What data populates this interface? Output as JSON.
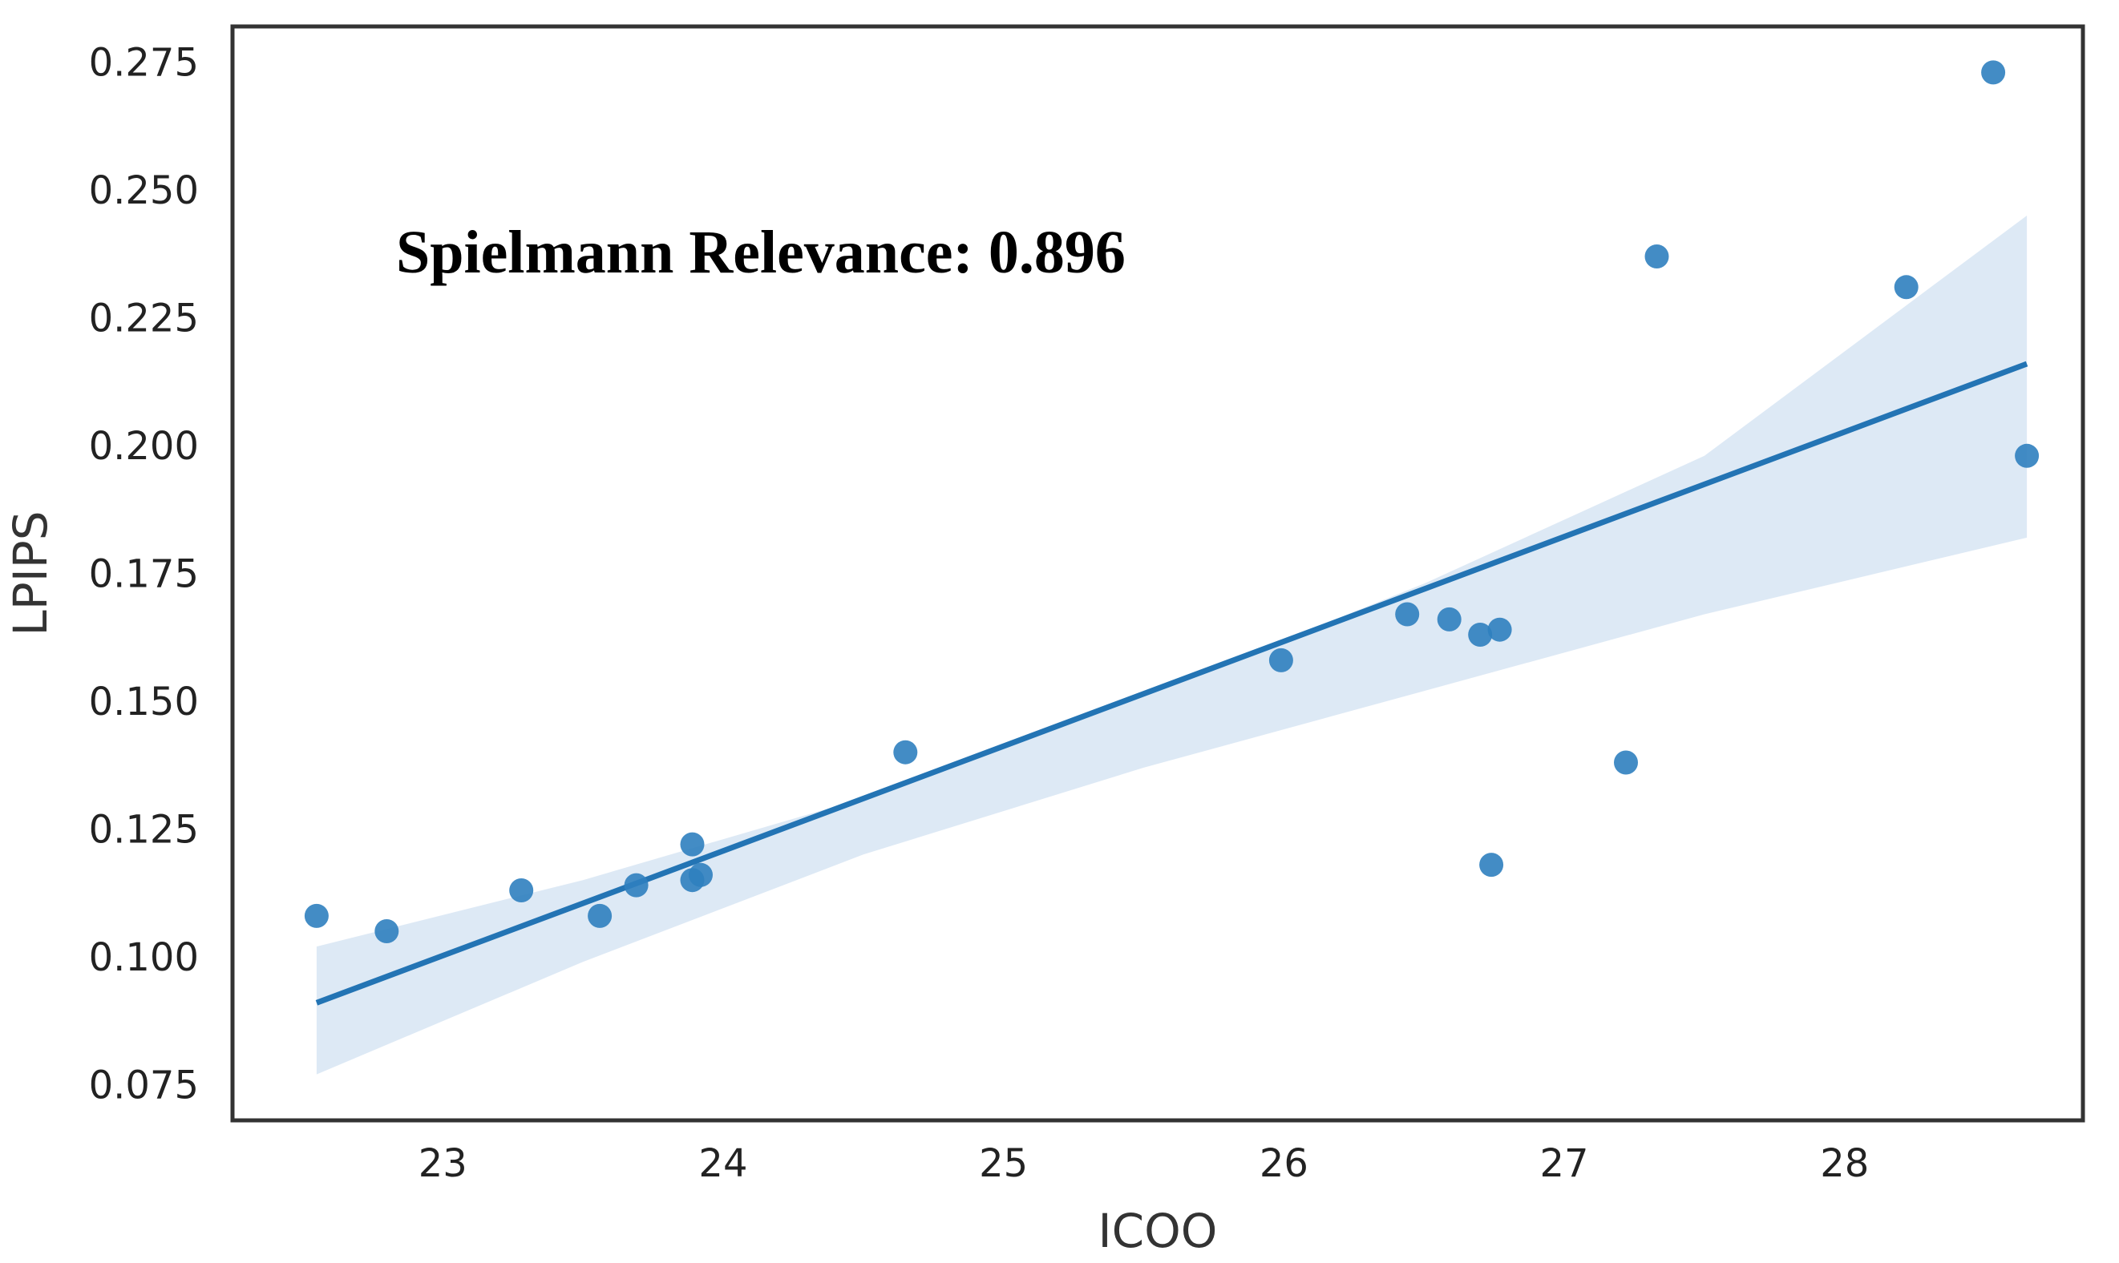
{
  "chart_data": {
    "type": "scatter",
    "xlabel": "ICOO",
    "ylabel": "LPIPS",
    "annotation": "Spielmann Relevance: 0.896",
    "xlim": [
      22.25,
      28.85
    ],
    "ylim": [
      0.068,
      0.282
    ],
    "xticks": [
      23,
      24,
      25,
      26,
      27,
      28
    ],
    "yticks": [
      0.075,
      0.1,
      0.125,
      0.15,
      0.175,
      0.2,
      0.225,
      0.25,
      0.275
    ],
    "xtick_labels": [
      "23",
      "24",
      "25",
      "26",
      "27",
      "28"
    ],
    "ytick_labels": [
      "0.075",
      "0.100",
      "0.125",
      "0.150",
      "0.175",
      "0.200",
      "0.225",
      "0.250",
      "0.275"
    ],
    "grid": false,
    "series": [
      {
        "points": [
          {
            "x": 22.55,
            "y": 0.108
          },
          {
            "x": 22.8,
            "y": 0.105
          },
          {
            "x": 23.28,
            "y": 0.113
          },
          {
            "x": 23.56,
            "y": 0.108
          },
          {
            "x": 23.69,
            "y": 0.114
          },
          {
            "x": 23.89,
            "y": 0.122
          },
          {
            "x": 23.89,
            "y": 0.115
          },
          {
            "x": 23.92,
            "y": 0.116
          },
          {
            "x": 24.65,
            "y": 0.14
          },
          {
            "x": 25.99,
            "y": 0.158
          },
          {
            "x": 26.44,
            "y": 0.167
          },
          {
            "x": 26.59,
            "y": 0.166
          },
          {
            "x": 26.7,
            "y": 0.163
          },
          {
            "x": 26.77,
            "y": 0.164
          },
          {
            "x": 26.74,
            "y": 0.118
          },
          {
            "x": 27.22,
            "y": 0.138
          },
          {
            "x": 27.33,
            "y": 0.237
          },
          {
            "x": 28.22,
            "y": 0.231
          },
          {
            "x": 28.53,
            "y": 0.273
          },
          {
            "x": 28.65,
            "y": 0.198
          }
        ]
      }
    ],
    "regression": {
      "x": [
        22.55,
        28.65
      ],
      "y": [
        0.091,
        0.216
      ],
      "ci": {
        "x": [
          22.55,
          23.5,
          24.5,
          25.5,
          26.5,
          27.5,
          28.65
        ],
        "lower": [
          0.077,
          0.099,
          0.12,
          0.137,
          0.152,
          0.167,
          0.182
        ],
        "upper": [
          0.102,
          0.115,
          0.131,
          0.151,
          0.173,
          0.198,
          0.245
        ]
      }
    },
    "colors": {
      "points": "#2f7fbf",
      "line": "#2374b4",
      "band": "#c6dbef",
      "frame": "#333333"
    }
  }
}
